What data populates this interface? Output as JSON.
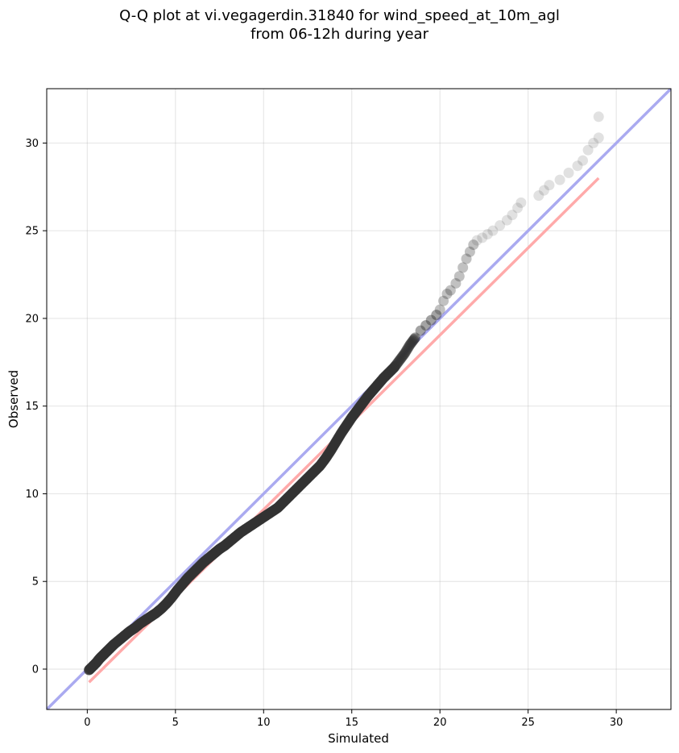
{
  "chart_data": {
    "type": "scatter",
    "title_line1": "Q-Q plot at vi.vegagerdin.31840 for wind_speed_at_10m_agl",
    "title_line2": "from 06-12h during year",
    "xlabel": "Simulated",
    "ylabel": "Observed",
    "xlim": [
      -2.3,
      33.1
    ],
    "ylim": [
      -2.3,
      33.1
    ],
    "xticks": [
      0,
      5,
      10,
      15,
      20,
      25,
      30
    ],
    "yticks": [
      0,
      5,
      10,
      15,
      20,
      25,
      30
    ],
    "grid": true,
    "identity_line": {
      "color": "#aaaaf0",
      "from": [
        -2.3,
        -2.3
      ],
      "to": [
        33.1,
        33.1
      ]
    },
    "fit_line": {
      "color": "#ffaaaa",
      "from": [
        0.1,
        -0.75
      ],
      "to": [
        29.0,
        28.0
      ]
    },
    "points": [
      [
        0.1,
        -0.05
      ],
      [
        0.3,
        0.15
      ],
      [
        0.5,
        0.35
      ],
      [
        0.7,
        0.6
      ],
      [
        0.9,
        0.8
      ],
      [
        1.1,
        1.0
      ],
      [
        1.3,
        1.2
      ],
      [
        1.5,
        1.4
      ],
      [
        1.8,
        1.65
      ],
      [
        2.1,
        1.9
      ],
      [
        2.4,
        2.15
      ],
      [
        2.7,
        2.35
      ],
      [
        3.0,
        2.6
      ],
      [
        3.3,
        2.8
      ],
      [
        3.6,
        3.0
      ],
      [
        3.9,
        3.2
      ],
      [
        4.2,
        3.45
      ],
      [
        4.5,
        3.75
      ],
      [
        4.8,
        4.1
      ],
      [
        5.1,
        4.5
      ],
      [
        5.4,
        4.85
      ],
      [
        5.7,
        5.2
      ],
      [
        6.0,
        5.5
      ],
      [
        6.3,
        5.8
      ],
      [
        6.6,
        6.1
      ],
      [
        6.9,
        6.35
      ],
      [
        7.2,
        6.6
      ],
      [
        7.5,
        6.85
      ],
      [
        7.8,
        7.05
      ],
      [
        8.1,
        7.3
      ],
      [
        8.4,
        7.55
      ],
      [
        8.7,
        7.8
      ],
      [
        9.0,
        8.0
      ],
      [
        9.3,
        8.2
      ],
      [
        9.6,
        8.4
      ],
      [
        9.9,
        8.6
      ],
      [
        10.2,
        8.8
      ],
      [
        10.5,
        9.0
      ],
      [
        10.8,
        9.2
      ],
      [
        11.1,
        9.5
      ],
      [
        11.4,
        9.8
      ],
      [
        11.7,
        10.1
      ],
      [
        12.0,
        10.4
      ],
      [
        12.3,
        10.7
      ],
      [
        12.6,
        11.0
      ],
      [
        12.9,
        11.3
      ],
      [
        13.2,
        11.6
      ],
      [
        13.5,
        12.0
      ],
      [
        13.8,
        12.45
      ],
      [
        14.1,
        12.95
      ],
      [
        14.4,
        13.45
      ],
      [
        14.7,
        13.9
      ],
      [
        15.0,
        14.35
      ],
      [
        15.3,
        14.75
      ],
      [
        15.6,
        15.15
      ],
      [
        15.9,
        15.55
      ],
      [
        16.2,
        15.9
      ],
      [
        16.5,
        16.25
      ],
      [
        16.8,
        16.6
      ],
      [
        17.1,
        16.9
      ],
      [
        17.4,
        17.2
      ],
      [
        17.7,
        17.6
      ],
      [
        18.0,
        18.0
      ],
      [
        18.3,
        18.5
      ],
      [
        18.6,
        18.9
      ],
      [
        18.9,
        19.3
      ],
      [
        19.2,
        19.6
      ],
      [
        19.5,
        19.9
      ],
      [
        19.8,
        20.2
      ],
      [
        20.0,
        20.5
      ],
      [
        20.2,
        21.0
      ],
      [
        20.4,
        21.4
      ],
      [
        20.6,
        21.6
      ],
      [
        20.9,
        22.0
      ],
      [
        21.1,
        22.4
      ],
      [
        21.3,
        22.9
      ],
      [
        21.5,
        23.4
      ],
      [
        21.7,
        23.8
      ],
      [
        21.9,
        24.2
      ],
      [
        22.1,
        24.45
      ],
      [
        22.4,
        24.6
      ],
      [
        22.7,
        24.8
      ],
      [
        23.0,
        25.0
      ],
      [
        23.4,
        25.3
      ],
      [
        23.8,
        25.6
      ],
      [
        24.1,
        25.9
      ],
      [
        24.4,
        26.3
      ],
      [
        24.6,
        26.6
      ],
      [
        25.6,
        27.0
      ],
      [
        25.9,
        27.3
      ],
      [
        26.2,
        27.6
      ],
      [
        26.8,
        27.9
      ],
      [
        27.3,
        28.3
      ],
      [
        27.8,
        28.7
      ],
      [
        28.1,
        29.0
      ],
      [
        28.4,
        29.6
      ],
      [
        28.7,
        30.0
      ],
      [
        29.0,
        30.3
      ],
      [
        29.0,
        31.5
      ]
    ]
  }
}
